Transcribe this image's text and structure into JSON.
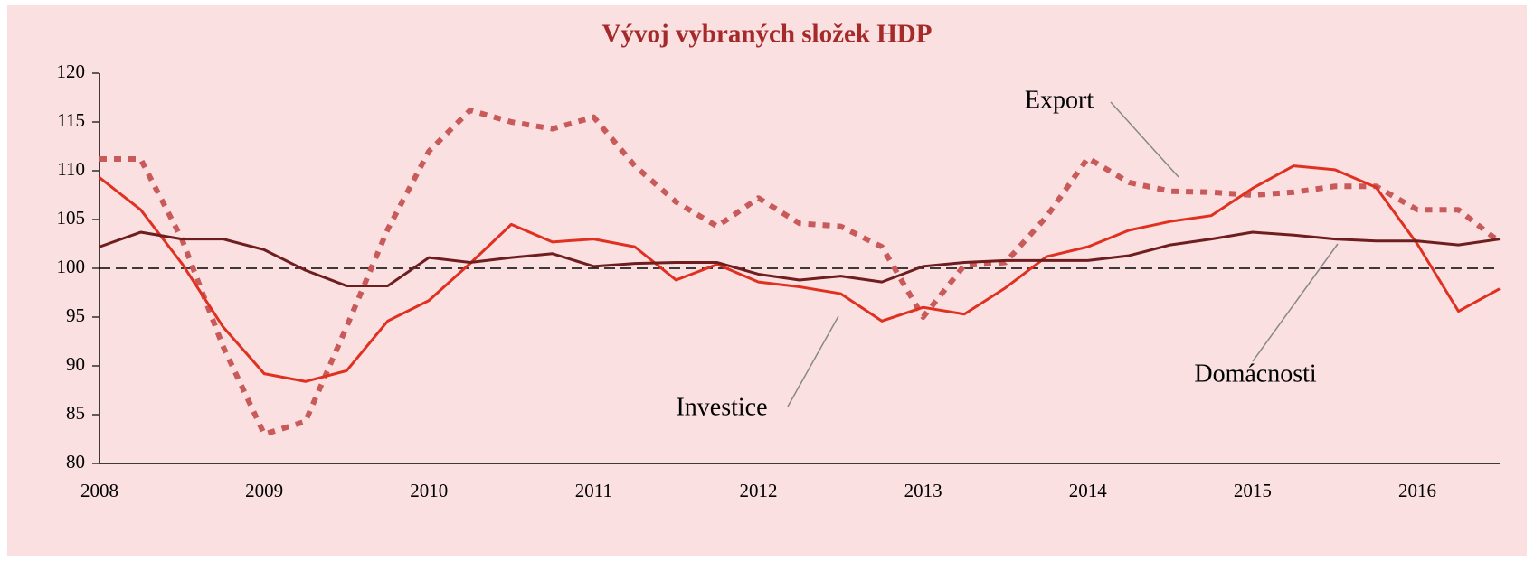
{
  "chart_data": {
    "type": "line",
    "title": "Vývoj vybraných složek HDP",
    "categories": [
      "2008",
      null,
      null,
      null,
      "2009",
      null,
      null,
      null,
      "2010",
      null,
      null,
      null,
      "2011",
      null,
      null,
      null,
      "2012",
      null,
      null,
      null,
      "2013",
      null,
      null,
      null,
      "2014",
      null,
      null,
      null,
      "2015",
      null,
      null,
      null,
      "2016",
      null,
      null
    ],
    "series": [
      {
        "name": "Export",
        "color": "#c85a5a",
        "style": "dotted",
        "values": [
          111.2,
          111.2,
          103.0,
          92.0,
          83.0,
          84.3,
          94.0,
          104.0,
          112.0,
          116.2,
          115.0,
          114.3,
          115.5,
          110.5,
          106.8,
          104.3,
          107.2,
          104.6,
          104.3,
          102.2,
          95.0,
          100.3,
          100.6,
          105.3,
          111.3,
          108.8,
          107.9,
          107.8,
          107.5,
          107.8,
          108.4,
          108.4,
          106.0,
          106.0,
          102.7
        ]
      },
      {
        "name": "Investice",
        "color": "#e03020",
        "style": "solid",
        "values": [
          109.3,
          106.0,
          100.5,
          94.0,
          89.2,
          88.4,
          89.5,
          94.6,
          96.7,
          100.5,
          104.5,
          102.7,
          103.0,
          102.2,
          98.8,
          100.4,
          98.6,
          98.1,
          97.4,
          94.6,
          96.0,
          95.3,
          98.0,
          101.2,
          102.2,
          103.9,
          104.8,
          105.4,
          108.2,
          110.5,
          110.1,
          108.3,
          102.5,
          95.6,
          97.9
        ]
      },
      {
        "name": "Domácnosti",
        "color": "#6e1e1e",
        "style": "solid",
        "values": [
          102.2,
          103.7,
          103.0,
          103.0,
          101.9,
          99.8,
          98.2,
          98.2,
          101.1,
          100.6,
          101.1,
          101.5,
          100.2,
          100.5,
          100.6,
          100.6,
          99.4,
          98.8,
          99.2,
          98.6,
          100.2,
          100.6,
          100.8,
          100.8,
          100.8,
          101.3,
          102.4,
          103.0,
          103.7,
          103.4,
          103.0,
          102.8,
          102.8,
          102.4,
          103.0
        ]
      }
    ],
    "ylim": [
      80,
      120
    ],
    "yticks": [
      80,
      85,
      90,
      95,
      100,
      105,
      110,
      115,
      120
    ],
    "reference_line": 100,
    "grid": false
  }
}
